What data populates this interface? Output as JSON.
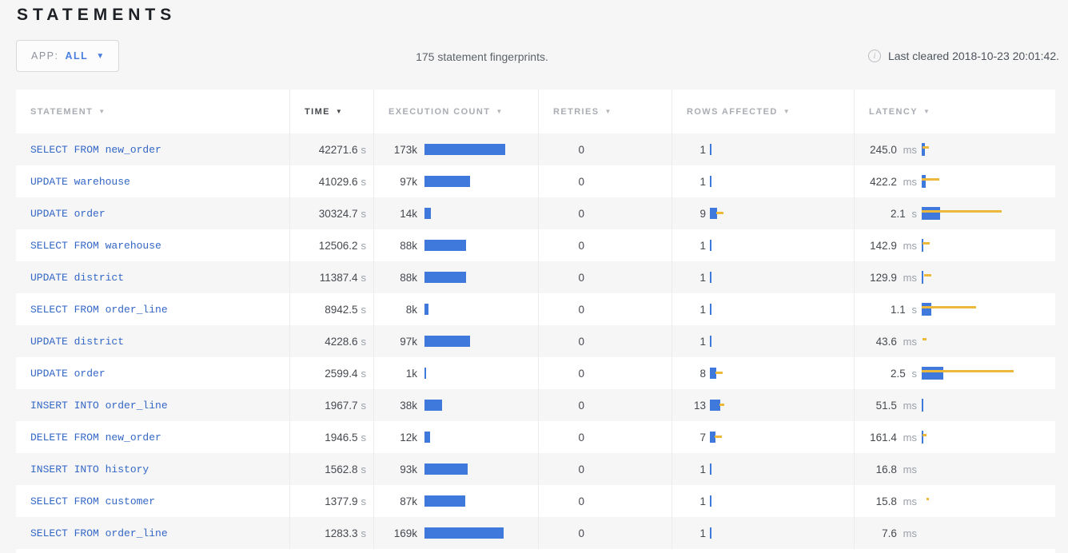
{
  "page": {
    "title": "STATEMENTS"
  },
  "toolbar": {
    "app_filter_label": "APP:",
    "app_filter_value": "ALL",
    "summary": "175 statement fingerprints.",
    "last_cleared": "Last cleared 2018-10-23 20:01:42."
  },
  "colors": {
    "bar_blue": "#3F79DB",
    "bar_yellow": "#ECB93D",
    "link_blue": "#3467C6"
  },
  "table": {
    "columns": [
      {
        "label": "STATEMENT",
        "active": false
      },
      {
        "label": "TIME",
        "active": true
      },
      {
        "label": "EXECUTION COUNT",
        "active": false
      },
      {
        "label": "RETRIES",
        "active": false
      },
      {
        "label": "ROWS AFFECTED",
        "active": false
      },
      {
        "label": "LATENCY",
        "active": false
      }
    ],
    "rows": [
      {
        "statement": "SELECT FROM new_order",
        "time_value": "42271.6",
        "time_unit": "s",
        "count_label": "173k",
        "retries": "0",
        "rows_label": "1",
        "latency_value": "245.0",
        "latency_unit": "ms",
        "bars": {
          "count": [
            101
          ],
          "rows": [
            2
          ],
          "rows_range": [
            0
          ],
          "lat": [
            4
          ],
          "lat_range": [
            8,
            1
          ]
        }
      },
      {
        "statement": "UPDATE warehouse",
        "time_value": "41029.6",
        "time_unit": "s",
        "count_label": "97k",
        "retries": "0",
        "rows_label": "1",
        "latency_value": "422.2",
        "latency_unit": "ms",
        "bars": {
          "count": [
            57
          ],
          "rows": [
            2
          ],
          "rows_range": [
            0
          ],
          "lat": [
            5
          ],
          "lat_range": [
            22,
            0
          ]
        }
      },
      {
        "statement": "UPDATE order",
        "time_value": "30324.7",
        "time_unit": "s",
        "count_label": "14k",
        "retries": "0",
        "rows_label": "9",
        "latency_value": "2.1",
        "latency_unit": "s",
        "bars": {
          "count": [
            8
          ],
          "rows": [
            9
          ],
          "rows_range": [
            9,
            8
          ],
          "lat": [
            23
          ],
          "lat_range": [
            100,
            0
          ]
        }
      },
      {
        "statement": "SELECT FROM warehouse",
        "time_value": "12506.2",
        "time_unit": "s",
        "count_label": "88k",
        "retries": "0",
        "rows_label": "1",
        "latency_value": "142.9",
        "latency_unit": "ms",
        "bars": {
          "count": [
            52
          ],
          "rows": [
            2
          ],
          "rows_range": [
            0
          ],
          "lat": [
            2
          ],
          "lat_range": [
            9,
            1
          ]
        }
      },
      {
        "statement": "UPDATE district",
        "time_value": "11387.4",
        "time_unit": "s",
        "count_label": "88k",
        "retries": "0",
        "rows_label": "1",
        "latency_value": "129.9",
        "latency_unit": "ms",
        "bars": {
          "count": [
            52
          ],
          "rows": [
            2
          ],
          "rows_range": [
            0
          ],
          "lat": [
            2
          ],
          "lat_range": [
            9,
            3
          ]
        }
      },
      {
        "statement": "SELECT FROM order_line",
        "time_value": "8942.5",
        "time_unit": "s",
        "count_label": "8k",
        "retries": "0",
        "rows_label": "1",
        "latency_value": "1.1",
        "latency_unit": "s",
        "bars": {
          "count": [
            5
          ],
          "rows": [
            2
          ],
          "rows_range": [
            0
          ],
          "lat": [
            12
          ],
          "lat_range": [
            68,
            0
          ]
        }
      },
      {
        "statement": "UPDATE district",
        "time_value": "4228.6",
        "time_unit": "s",
        "count_label": "97k",
        "retries": "0",
        "rows_label": "1",
        "latency_value": "43.6",
        "latency_unit": "ms",
        "bars": {
          "count": [
            57
          ],
          "rows": [
            2
          ],
          "rows_range": [
            0
          ],
          "lat": [
            0
          ],
          "lat_range": [
            5,
            1
          ]
        }
      },
      {
        "statement": "UPDATE order",
        "time_value": "2599.4",
        "time_unit": "s",
        "count_label": "1k",
        "retries": "0",
        "rows_label": "8",
        "latency_value": "2.5",
        "latency_unit": "s",
        "bars": {
          "count": [
            2
          ],
          "rows": [
            8
          ],
          "rows_range": [
            9,
            7
          ],
          "lat": [
            27
          ],
          "lat_range": [
            115,
            0
          ]
        }
      },
      {
        "statement": "INSERT INTO order_line",
        "time_value": "1967.7",
        "time_unit": "s",
        "count_label": "38k",
        "retries": "0",
        "rows_label": "13",
        "latency_value": "51.5",
        "latency_unit": "ms",
        "bars": {
          "count": [
            22
          ],
          "rows": [
            13
          ],
          "rows_range": [
            6,
            12
          ],
          "lat": [
            2
          ],
          "lat_range": [
            0
          ]
        }
      },
      {
        "statement": "DELETE FROM new_order",
        "time_value": "1946.5",
        "time_unit": "s",
        "count_label": "12k",
        "retries": "0",
        "rows_label": "7",
        "latency_value": "161.4",
        "latency_unit": "ms",
        "bars": {
          "count": [
            7
          ],
          "rows": [
            7
          ],
          "rows_range": [
            9,
            6
          ],
          "lat": [
            2
          ],
          "lat_range": [
            5,
            1
          ]
        }
      },
      {
        "statement": "INSERT INTO history",
        "time_value": "1562.8",
        "time_unit": "s",
        "count_label": "93k",
        "retries": "0",
        "rows_label": "1",
        "latency_value": "16.8",
        "latency_unit": "ms",
        "bars": {
          "count": [
            54
          ],
          "rows": [
            2
          ],
          "rows_range": [
            0
          ],
          "lat": [
            0
          ],
          "lat_range": [
            0
          ]
        }
      },
      {
        "statement": "SELECT FROM customer",
        "time_value": "1377.9",
        "time_unit": "s",
        "count_label": "87k",
        "retries": "0",
        "rows_label": "1",
        "latency_value": "15.8",
        "latency_unit": "ms",
        "bars": {
          "count": [
            51
          ],
          "rows": [
            2
          ],
          "rows_range": [
            0
          ],
          "lat": [
            0
          ],
          "lat_range": [
            3,
            6
          ]
        }
      },
      {
        "statement": "SELECT FROM order_line",
        "time_value": "1283.3",
        "time_unit": "s",
        "count_label": "169k",
        "retries": "0",
        "rows_label": "1",
        "latency_value": "7.6",
        "latency_unit": "ms",
        "bars": {
          "count": [
            99
          ],
          "rows": [
            2
          ],
          "rows_range": [
            0
          ],
          "lat": [
            0
          ],
          "lat_range": [
            0
          ]
        }
      }
    ]
  }
}
